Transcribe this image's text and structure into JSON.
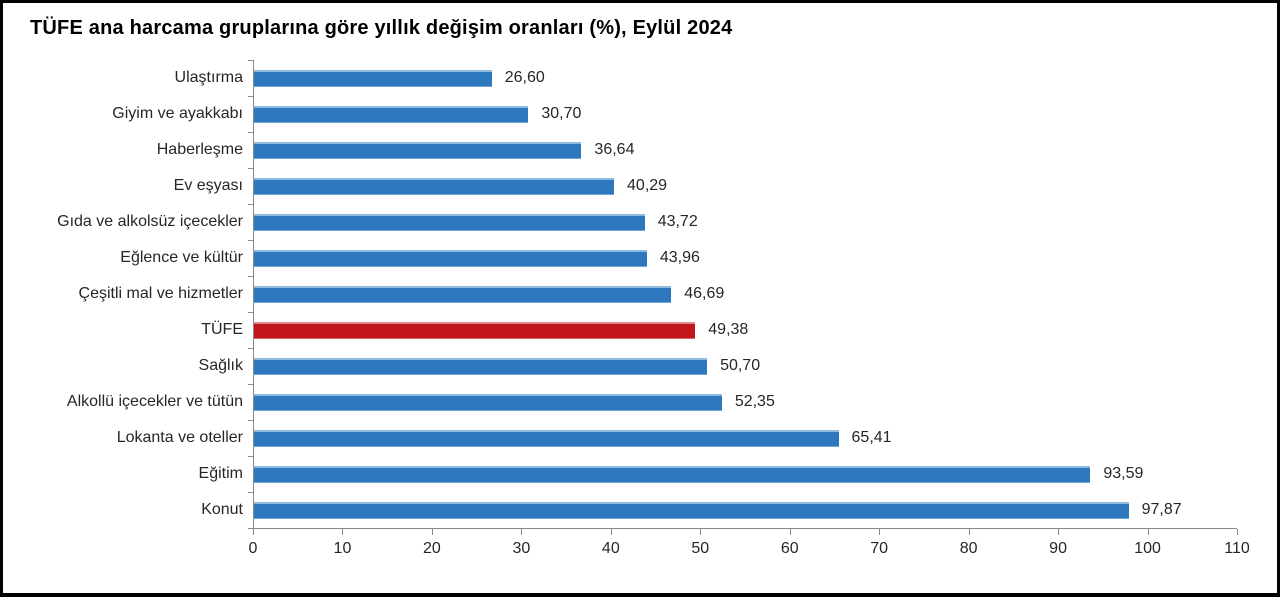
{
  "title": "TÜFE ana harcama gruplarına göre yıllık değişim oranları (%), Eylül 2024",
  "colors": {
    "bar_blue": "#2e79bd",
    "bar_blue_edge": "#8fbbdf",
    "bar_red": "#c0161c",
    "axis": "#8a8a8a",
    "text": "#262626",
    "title_text": "#000000",
    "frame": "#000000"
  },
  "chart_data": {
    "type": "bar",
    "orientation": "horizontal",
    "title": "TÜFE ana harcama gruplarına göre yıllık değişim oranları (%), Eylül 2024",
    "categories": [
      "Ulaştırma",
      "Giyim ve ayakkabı",
      "Haberleşme",
      "Ev eşyası",
      "Gıda ve alkolsüz içecekler",
      "Eğlence ve kültür",
      "Çeşitli mal ve hizmetler",
      "TÜFE",
      "Sağlık",
      "Alkollü içecekler ve tütün",
      "Lokanta ve oteller",
      "Eğitim",
      "Konut"
    ],
    "values": [
      26.6,
      30.7,
      36.64,
      40.29,
      43.72,
      43.96,
      46.69,
      49.38,
      50.7,
      52.35,
      65.41,
      93.59,
      97.87
    ],
    "value_labels": [
      "26,60",
      "30,70",
      "36,64",
      "40,29",
      "43,72",
      "43,96",
      "46,69",
      "49,38",
      "50,70",
      "52,35",
      "65,41",
      "93,59",
      "97,87"
    ],
    "highlight_category": "TÜFE",
    "xlabel": "",
    "ylabel": "",
    "xlim": [
      0,
      110
    ],
    "x_ticks": [
      0,
      10,
      20,
      30,
      40,
      50,
      60,
      70,
      80,
      90,
      100,
      110
    ],
    "grid": false,
    "legend": false,
    "bar_labels_position": "right-of-bar"
  }
}
